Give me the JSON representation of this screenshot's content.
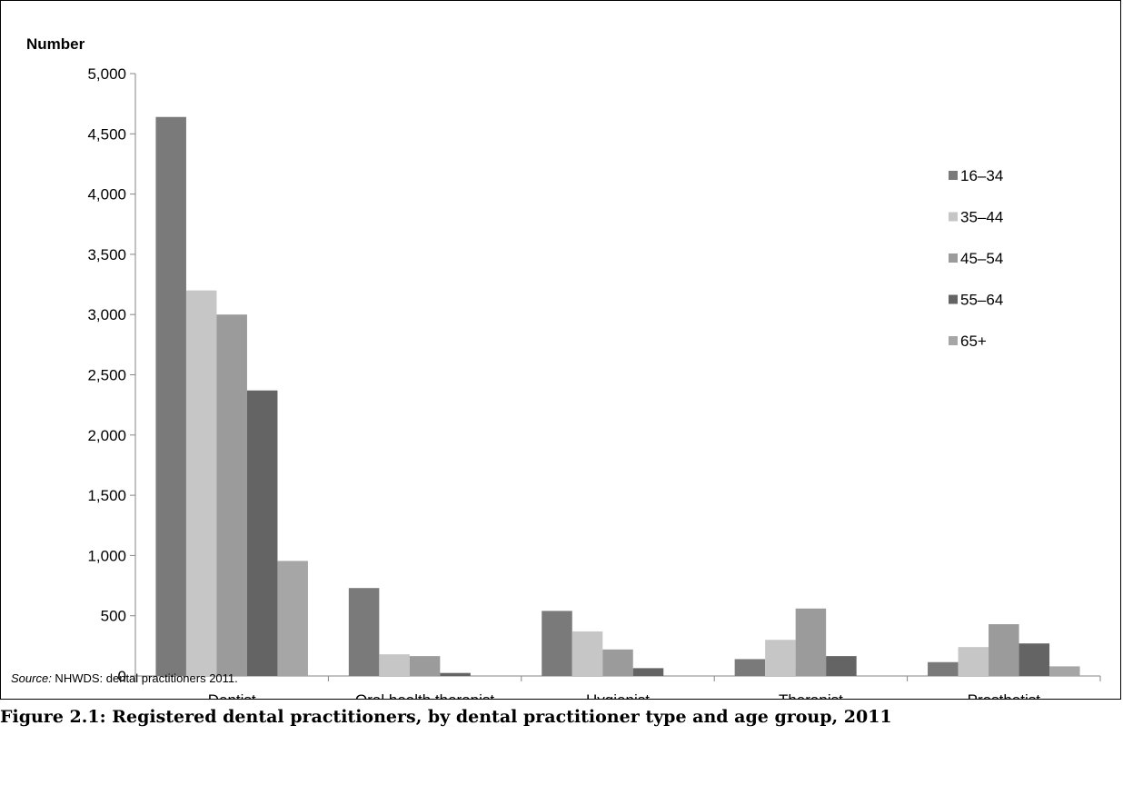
{
  "chart_data": {
    "type": "bar",
    "ylabel": "Number",
    "xlabel": "",
    "ylim": [
      0,
      5000
    ],
    "yticks": [
      0,
      500,
      1000,
      1500,
      2000,
      2500,
      3000,
      3500,
      4000,
      4500,
      5000
    ],
    "ytick_labels": [
      "0",
      "500",
      "1,000",
      "1,500",
      "2,000",
      "2,500",
      "3,000",
      "3,500",
      "4,000",
      "4,500",
      "5,000"
    ],
    "grid": false,
    "legend_position": "right",
    "categories": [
      "Dentist",
      "Oral health therapist",
      "Hygienist",
      "Therapist",
      "Prosthetist"
    ],
    "series": [
      {
        "name": "16–34",
        "color": "#7a7a7a",
        "values": [
          4640,
          730,
          540,
          140,
          115
        ]
      },
      {
        "name": "35–44",
        "color": "#c6c6c6",
        "values": [
          3200,
          180,
          370,
          300,
          240
        ]
      },
      {
        "name": "45–54",
        "color": "#9b9b9b",
        "values": [
          3000,
          165,
          220,
          560,
          430
        ]
      },
      {
        "name": "55–64",
        "color": "#646464",
        "values": [
          2370,
          25,
          65,
          165,
          270
        ]
      },
      {
        "name": "65+",
        "color": "#a6a6a6",
        "values": [
          955,
          0,
          0,
          0,
          80
        ]
      }
    ]
  },
  "source": {
    "prefix": "Source:",
    "text": " NHWDS: dental practitioners 2011."
  },
  "caption": "Figure 2.1: Registered dental practitioners, by dental practitioner type and age group, 2011"
}
